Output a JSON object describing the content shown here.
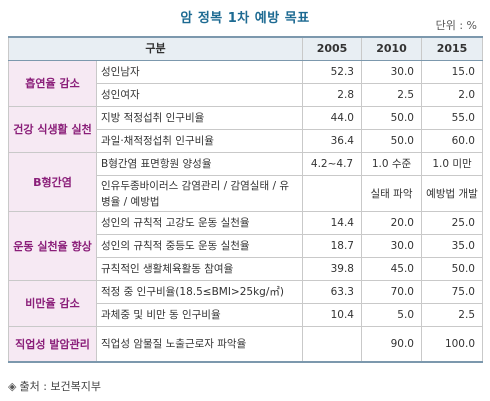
{
  "title": "암 정복 1차 예방 목표",
  "unit": "단위 : %",
  "table": {
    "headers": {
      "group": "구분",
      "y2005": "2005",
      "y2010": "2010",
      "y2015": "2015"
    },
    "categories": {
      "smoking": "흡연율 감소",
      "diet": "건강 식생활 실천",
      "hepb": "B형간염",
      "exercise": "운동 실천율 향상",
      "obesity": "비만율 감소",
      "occupational": "직업성 발암관리"
    },
    "rows": [
      {
        "item": "성인남자",
        "v2005": "52.3",
        "v2010": "30.0",
        "v2015": "15.0"
      },
      {
        "item": "성인여자",
        "v2005": "2.8",
        "v2010": "2.5",
        "v2015": "2.0"
      },
      {
        "item": "지방 적정섭취 인구비율",
        "v2005": "44.0",
        "v2010": "50.0",
        "v2015": "55.0"
      },
      {
        "item": "과일·채적정섭취 인구비율",
        "v2005": "36.4",
        "v2010": "50.0",
        "v2015": "60.0"
      },
      {
        "item": "B형간염 표면항원 양성율",
        "v2005": "4.2~4.7",
        "v2010": "1.0 수준",
        "v2015": "1.0 미만"
      },
      {
        "item": "인유두종바이러스 감염관리 / 감염실태 / 유병율 / 예방법",
        "v2005": "",
        "v2010": "실태 파악",
        "v2015": "예방법 개발"
      },
      {
        "item": "성인의 규칙적 고강도 운동 실천율",
        "v2005": "14.4",
        "v2010": "20.0",
        "v2015": "25.0"
      },
      {
        "item": "성인의 규칙적 중등도 운동 실천율",
        "v2005": "18.7",
        "v2010": "30.0",
        "v2015": "35.0"
      },
      {
        "item": "규칙적인 생활체육활동 참여율",
        "v2005": "39.8",
        "v2010": "45.0",
        "v2015": "50.0"
      },
      {
        "item": "적정 중 인구비율(18.5≤BMI>25kg/㎡)",
        "v2005": "63.3",
        "v2010": "70.0",
        "v2015": "75.0"
      },
      {
        "item": "과체중 및 비만 동 인구비율",
        "v2005": "10.4",
        "v2010": "5.0",
        "v2015": "2.5"
      },
      {
        "item": "직업성 암물질 노출근로자 파악율",
        "v2005": "",
        "v2010": "90.0",
        "v2015": "100.0"
      }
    ]
  },
  "source": {
    "mark": "◈",
    "text": "출처 : 보건복지부"
  }
}
